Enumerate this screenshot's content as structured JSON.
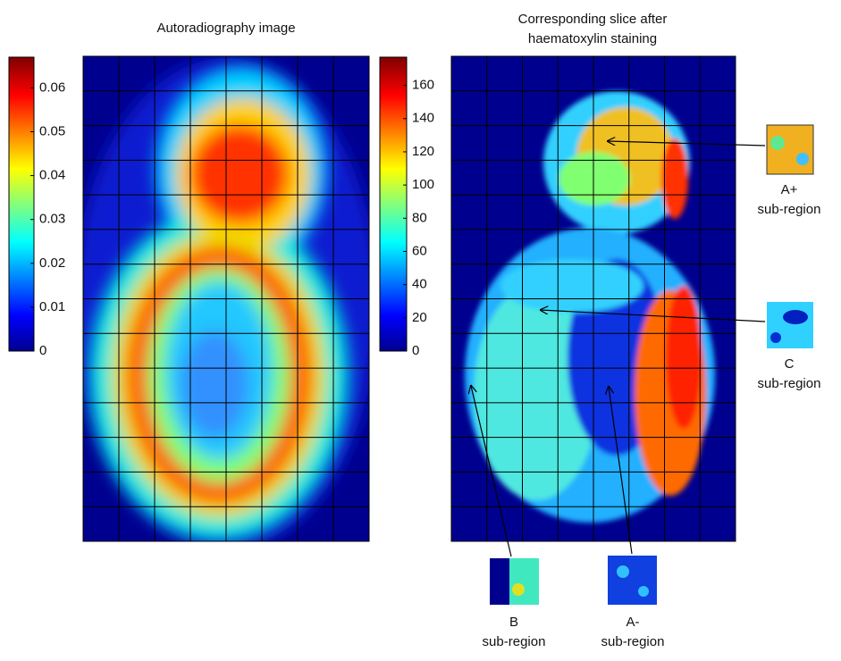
{
  "left_panel": {
    "title": "Autoradiography image",
    "colorbar": {
      "lim": [
        0,
        0.067
      ],
      "ticks": [
        0,
        0.01,
        0.02,
        0.03,
        0.04,
        0.05,
        0.06
      ]
    }
  },
  "right_panel": {
    "title": [
      "Corresponding slice after",
      "haematoxylin staining"
    ],
    "colorbar": {
      "lim": [
        0,
        177
      ],
      "ticks": [
        0,
        20,
        40,
        60,
        80,
        100,
        120,
        140,
        160
      ]
    }
  },
  "subregions": [
    {
      "label": "A+",
      "caption": "sub-region"
    },
    {
      "label": "C",
      "caption": "sub-region"
    },
    {
      "label": "B",
      "caption": "sub-region"
    },
    {
      "label": "A-",
      "caption": "sub-region"
    }
  ]
}
